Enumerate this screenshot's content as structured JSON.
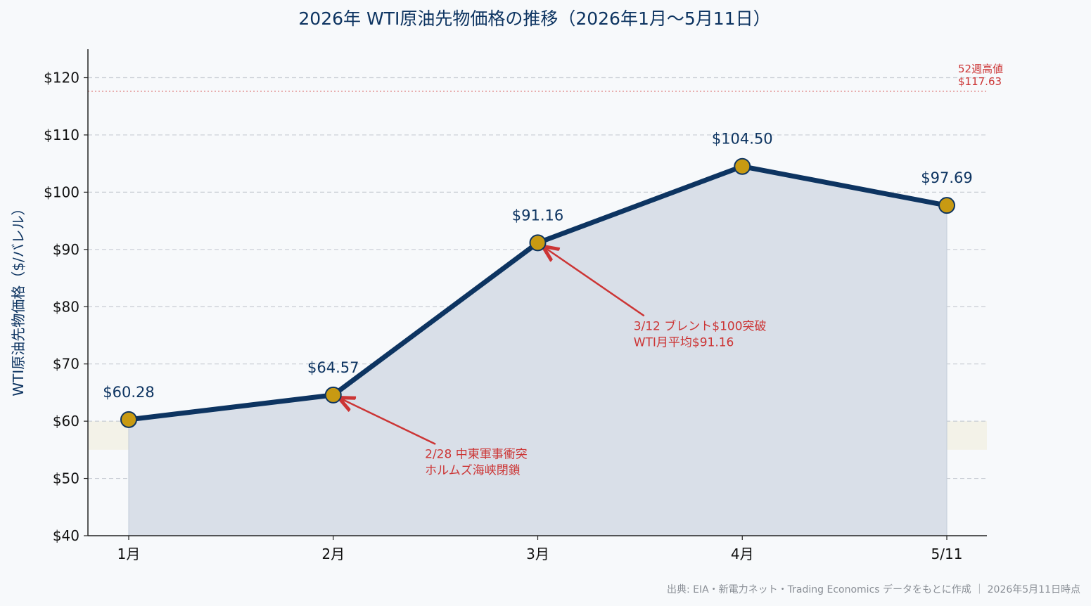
{
  "chart_data": {
    "type": "line",
    "title": "2026年 WTI原油先物価格の推移（2026年1月～5月11日）",
    "ylabel": "WTI原油先物価格（$/バレル）",
    "xlabel": "",
    "categories": [
      "1月",
      "2月",
      "3月",
      "4月",
      "5/11"
    ],
    "values": [
      60.28,
      64.57,
      91.16,
      104.5,
      97.69
    ],
    "value_labels": [
      "$60.28",
      "$64.57",
      "$91.16",
      "$104.50",
      "$97.69"
    ],
    "ylim": [
      40,
      125
    ],
    "yticks": [
      40,
      50,
      60,
      70,
      80,
      90,
      100,
      110,
      120
    ],
    "ytick_labels": [
      "$40",
      "$50",
      "$60",
      "$70",
      "$80",
      "$90",
      "$100",
      "$110",
      "$120"
    ],
    "grid": "horizontal dashed",
    "highlight_band": [
      55,
      60
    ],
    "reference_line": {
      "value": 117.63,
      "label_line1": "52週高値",
      "label_line2": "$117.63"
    },
    "annotations": [
      {
        "point_index": 1,
        "line1": "2/28 中東軍事衝突",
        "line2": "ホルムズ海峡閉鎖",
        "target_value": 64.57,
        "text_anchor_x": 1.5,
        "text_anchor_y": 56
      },
      {
        "point_index": 2,
        "line1": "3/12 ブレント$100突破",
        "line2": "WTI月平均$91.16",
        "target_value": 91.16,
        "text_anchor_x": 2.52,
        "text_anchor_y": 78.4
      }
    ],
    "source": "出典: EIA・新電力ネット・Trading Economics データをもとに作成 ｜ 2026年5月11日時点"
  },
  "colors": {
    "line": "#0d3461",
    "marker_fill": "#c89a12",
    "area_fill": "#d9dfe8",
    "band_fill": "#f3f2e8",
    "grid": "#c8cdd4",
    "annotation": "#cc3535",
    "title": "#0d3461",
    "source": "#8a8f96"
  }
}
